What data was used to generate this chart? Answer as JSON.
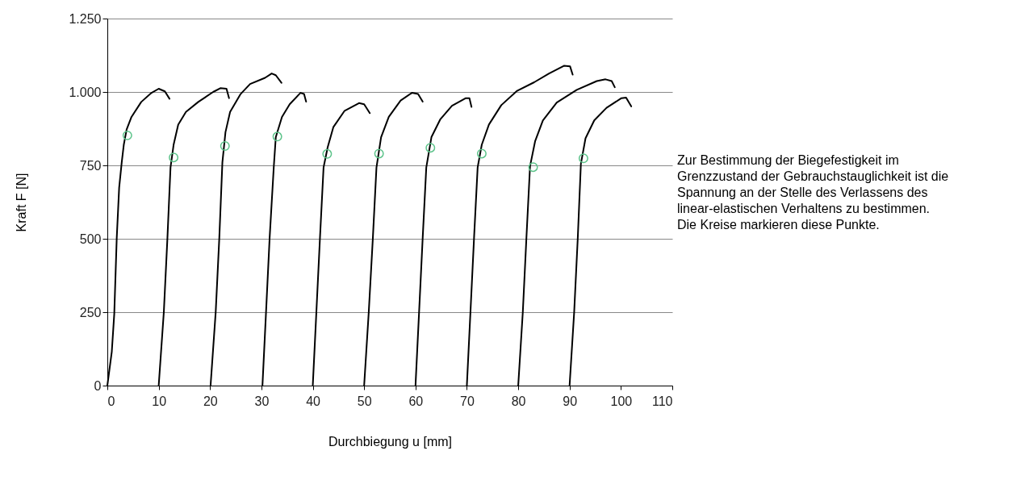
{
  "chart_data": {
    "type": "line",
    "xlabel": "Durchbiegung u [mm]",
    "ylabel": "Kraft F [N]",
    "annotations": [
      "Zur Bestimmung der Biegefestigkeit im\nGrenzzustand der Gebrauchstauglichkeit ist die\nSpannung an der Stelle des Verlassens des\nlinear-elastischen Verhaltens zu bestimmen.\nDie Kreise markieren diese Punkte."
    ],
    "xlim": [
      0,
      110
    ],
    "xticks": [
      0,
      10,
      20,
      30,
      40,
      50,
      60,
      70,
      80,
      90,
      100,
      110
    ],
    "ylim": [
      0,
      1250
    ],
    "yticks": [
      0,
      250,
      500,
      750,
      {
        "value": 1000,
        "label": "1.000"
      },
      {
        "value": 1250,
        "label": "1.250"
      }
    ],
    "grid": "y",
    "legend": false,
    "line_style": "solid",
    "series": [
      {
        "color": "#000000",
        "x": [
          0,
          0.87,
          1.35,
          1.83,
          2.3,
          2.8,
          3.2,
          3.75,
          4.7,
          6.6,
          8.6,
          10,
          11.2,
          12.1
        ],
        "values": [
          0,
          116,
          245,
          503,
          674,
          760,
          820,
          872,
          915,
          966,
          997,
          1011,
          1002,
          977
        ]
      },
      {
        "color": "#000000",
        "x": [
          10,
          11.0,
          11.7,
          12.3,
          12.9,
          13.8,
          15.3,
          17.7,
          20.6,
          22,
          23.2,
          23.7
        ],
        "values": [
          0,
          251,
          503,
          743,
          820,
          889,
          932,
          966,
          1000,
          1013,
          1011,
          979
        ]
      },
      {
        "color": "#000000",
        "x": [
          20.1,
          21.1,
          21.8,
          22.4,
          23,
          23.9,
          25.9,
          27.8,
          30.7,
          32,
          32.8,
          33.9
        ],
        "values": [
          0,
          251,
          503,
          760,
          863,
          932,
          992,
          1027,
          1048,
          1063,
          1057,
          1031
        ]
      },
      {
        "color": "#000000",
        "x": [
          30.2,
          30.9,
          31.6,
          32.4,
          32.8,
          34,
          35.5,
          37.6,
          38.3,
          38.7
        ],
        "values": [
          0,
          251,
          503,
          743,
          846,
          915,
          958,
          997,
          993,
          967
        ]
      },
      {
        "color": "#000000",
        "x": [
          40,
          40.7,
          41.4,
          42.1,
          42.9,
          44,
          46.2,
          49,
          50,
          51.1
        ],
        "values": [
          0,
          251,
          503,
          743,
          812,
          880,
          936,
          962,
          958,
          928
        ]
      },
      {
        "color": "#000000",
        "x": [
          50,
          50.9,
          51.7,
          52.4,
          53.3,
          54.8,
          57.1,
          59.3,
          60.5,
          61.4
        ],
        "values": [
          0,
          251,
          503,
          743,
          846,
          915,
          971,
          997,
          993,
          967
        ]
      },
      {
        "color": "#000000",
        "x": [
          60,
          60.7,
          61.4,
          62.1,
          63.1,
          64.8,
          67.1,
          69.8,
          70.5,
          70.9
        ],
        "values": [
          0,
          251,
          503,
          743,
          846,
          906,
          953,
          979,
          979,
          949
        ]
      },
      {
        "color": "#000000",
        "x": [
          70,
          70.7,
          71.4,
          72.1,
          72.9,
          74.3,
          76.7,
          79.7,
          83.1,
          86,
          88.9,
          90.1,
          90.6
        ],
        "values": [
          0,
          251,
          503,
          743,
          820,
          889,
          955,
          1003,
          1033,
          1063,
          1089,
          1087,
          1059
        ]
      },
      {
        "color": "#000000",
        "x": [
          80,
          80.9,
          81.6,
          82.3,
          83.3,
          84.8,
          87.5,
          91.4,
          95.3,
          97,
          98.2,
          98.8
        ],
        "values": [
          0,
          252,
          505,
          747,
          833,
          903,
          964,
          1007,
          1037,
          1043,
          1037,
          1016
        ]
      },
      {
        "color": "#000000",
        "x": [
          90,
          90.9,
          91.6,
          92.2,
          93.1,
          94.8,
          97.2,
          100.1,
          101,
          102
        ],
        "values": [
          0,
          252,
          505,
          755,
          842,
          903,
          946,
          979,
          981,
          951
        ]
      },
      {
        "type": "scatter",
        "marker": "circle",
        "color": "#5cc38a",
        "x": [
          3.9,
          12.9,
          22.9,
          33.1,
          42.8,
          52.9,
          62.9,
          72.9,
          82.9,
          92.7
        ],
        "values": [
          852,
          777,
          816,
          848,
          789,
          790,
          810,
          790,
          744,
          774
        ]
      }
    ]
  }
}
